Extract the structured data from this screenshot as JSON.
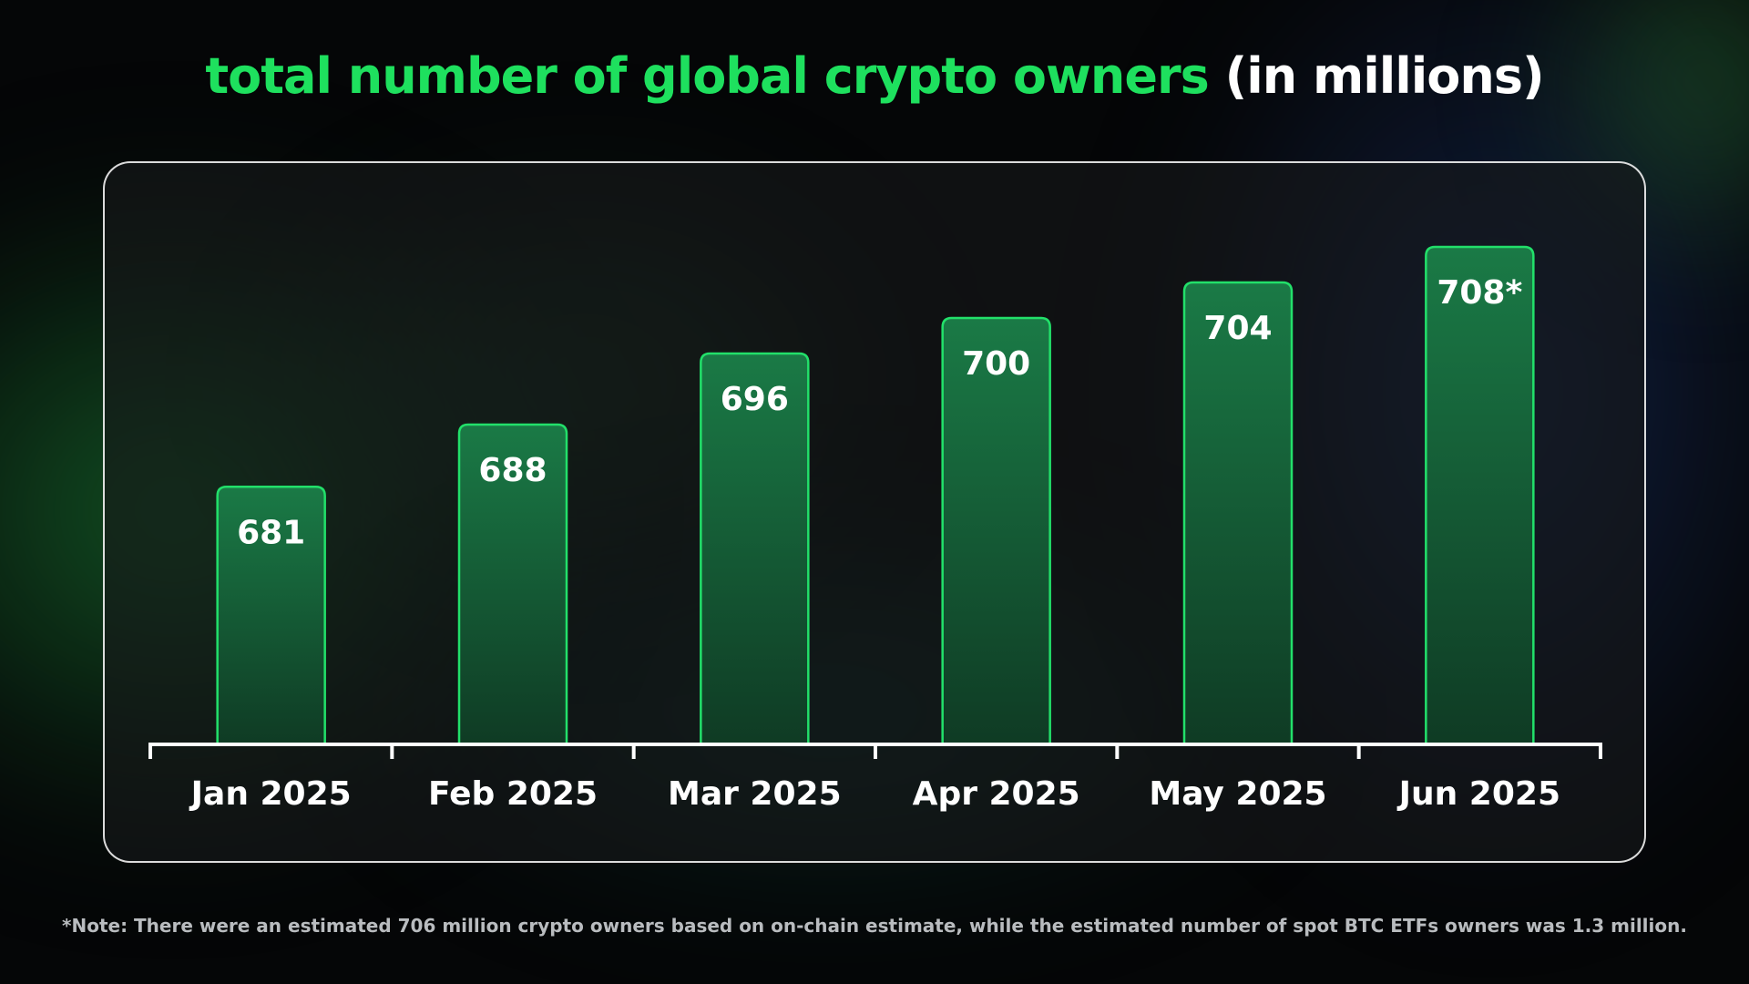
{
  "title": {
    "main": "total number of global crypto owners",
    "suffix": "(in millions)"
  },
  "colors": {
    "accent": "#1ee05e",
    "bar_stroke": "#22e06a",
    "bar_fill_top": "#1a7a46",
    "bar_fill_bottom": "#0f3b24",
    "axis": "#ffffff",
    "label": "#ffffff"
  },
  "chart_data": {
    "type": "bar",
    "title": "total number of global crypto owners (in millions)",
    "categories": [
      "Jan 2025",
      "Feb 2025",
      "Mar 2025",
      "Apr 2025",
      "May 2025",
      "Jun 2025"
    ],
    "values": [
      681,
      688,
      696,
      700,
      704,
      708
    ],
    "data_labels": [
      "681",
      "688",
      "696",
      "700",
      "704",
      "708*"
    ],
    "xlabel": "",
    "ylabel": "",
    "ylim": [
      652,
      712
    ],
    "grid": false,
    "legend": "none"
  },
  "footnote": "*Note: There were an estimated 706 million crypto owners based on on-chain estimate, while the estimated number of spot BTC ETFs owners was 1.3 million."
}
